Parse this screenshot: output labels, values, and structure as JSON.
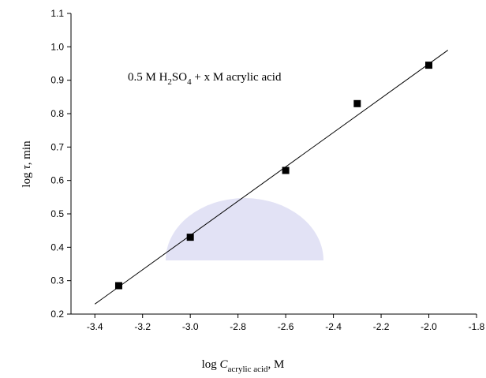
{
  "chart_data": {
    "type": "scatter",
    "annotation": [
      {
        "text": "0.5 M H"
      },
      {
        "text": "2",
        "sub": true
      },
      {
        "text": "SO"
      },
      {
        "text": "4",
        "sub": true
      },
      {
        "text": " +  x M acrylic acid"
      }
    ],
    "x_label": [
      {
        "text": "log "
      },
      {
        "text": "C",
        "italic": true
      },
      {
        "text": "acrylic acid",
        "sub": true
      },
      {
        "text": ", M"
      }
    ],
    "y_label": [
      {
        "text": "log "
      },
      {
        "text": "τ",
        "italic": true
      },
      {
        "text": ", min"
      }
    ],
    "x": [
      -3.3,
      -3.0,
      -2.6,
      -2.3,
      -2.0
    ],
    "values": [
      0.285,
      0.43,
      0.63,
      0.83,
      0.945
    ],
    "color": "#000000",
    "fit_line": {
      "x": [
        -3.4,
        -1.92
      ],
      "y": [
        0.23,
        0.99
      ]
    },
    "xlim": [
      -3.5,
      -1.8
    ],
    "xticks": [
      -3.4,
      -3.2,
      {
        "value": -3.0,
        "label": "-3.0"
      },
      -2.8,
      -2.6,
      -2.4,
      -2.2,
      {
        "value": -2.0,
        "label": "-2.0"
      },
      -1.8
    ],
    "ylim": [
      0.2,
      1.1
    ],
    "yticks": [
      0.2,
      0.3,
      0.4,
      0.5,
      0.6,
      0.7,
      0.8,
      0.9,
      {
        "value": 1.0,
        "label": "1.0"
      },
      1.1
    ]
  }
}
